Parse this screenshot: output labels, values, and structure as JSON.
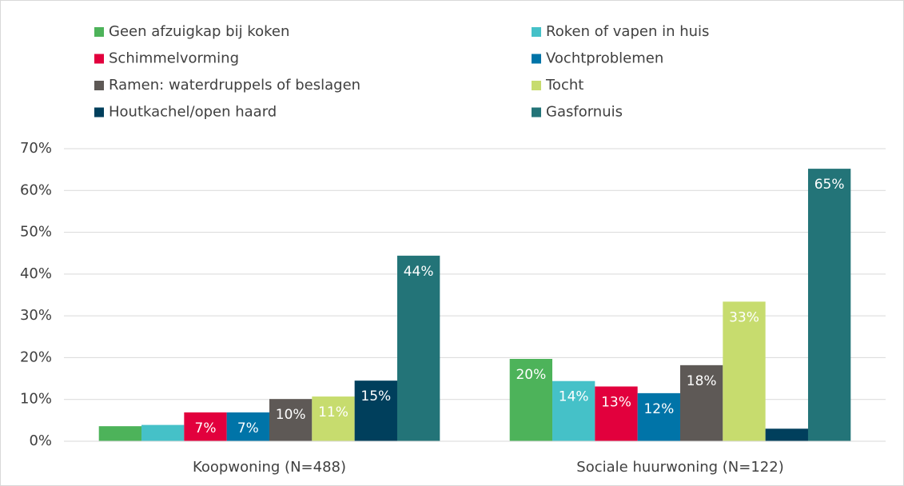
{
  "chart_data": {
    "type": "bar",
    "categories": [
      "Koopwoning (N=488)",
      "Sociale huurwoning (N=122)"
    ],
    "series": [
      {
        "name": "Geen afzuigkap bij koken",
        "color": "#4db35a",
        "values": [
          3.6,
          19.7
        ],
        "value_labels": [
          null,
          "20%"
        ]
      },
      {
        "name": "Roken of vapen in huis",
        "color": "#45c1c8",
        "values": [
          3.9,
          14.4
        ],
        "value_labels": [
          null,
          "14%"
        ]
      },
      {
        "name": "Schimmelvorming",
        "color": "#e2003d",
        "values": [
          6.9,
          13.1
        ],
        "value_labels": [
          "7%",
          "13%"
        ]
      },
      {
        "name": "Vochtproblemen",
        "color": "#0074a8",
        "values": [
          6.9,
          11.5
        ],
        "value_labels": [
          "7%",
          "12%"
        ]
      },
      {
        "name": "Ramen: waterdruppels of beslagen",
        "color": "#5e5956",
        "values": [
          10.1,
          18.2
        ],
        "value_labels": [
          "10%",
          "18%"
        ]
      },
      {
        "name": "Tocht",
        "color": "#c7dc6e",
        "values": [
          10.7,
          33.4
        ],
        "value_labels": [
          "11%",
          "33%"
        ]
      },
      {
        "name": "Houtkachel/open haard",
        "color": "#003f5c",
        "values": [
          14.5,
          3.0
        ],
        "value_labels": [
          "15%",
          null
        ]
      },
      {
        "name": "Gasfornuis",
        "color": "#237478",
        "values": [
          44.4,
          65.2
        ],
        "value_labels": [
          "44%",
          "65%"
        ]
      }
    ],
    "ylim": [
      0,
      70
    ],
    "yticks": [
      {
        "value": 0,
        "label": "0%"
      },
      {
        "value": 10,
        "label": "10%"
      },
      {
        "value": 20,
        "label": "20%"
      },
      {
        "value": 30,
        "label": "30%"
      },
      {
        "value": 40,
        "label": "40%"
      },
      {
        "value": 50,
        "label": "50%"
      },
      {
        "value": 60,
        "label": "60%"
      },
      {
        "value": 70,
        "label": "70%"
      }
    ],
    "grid": true
  }
}
